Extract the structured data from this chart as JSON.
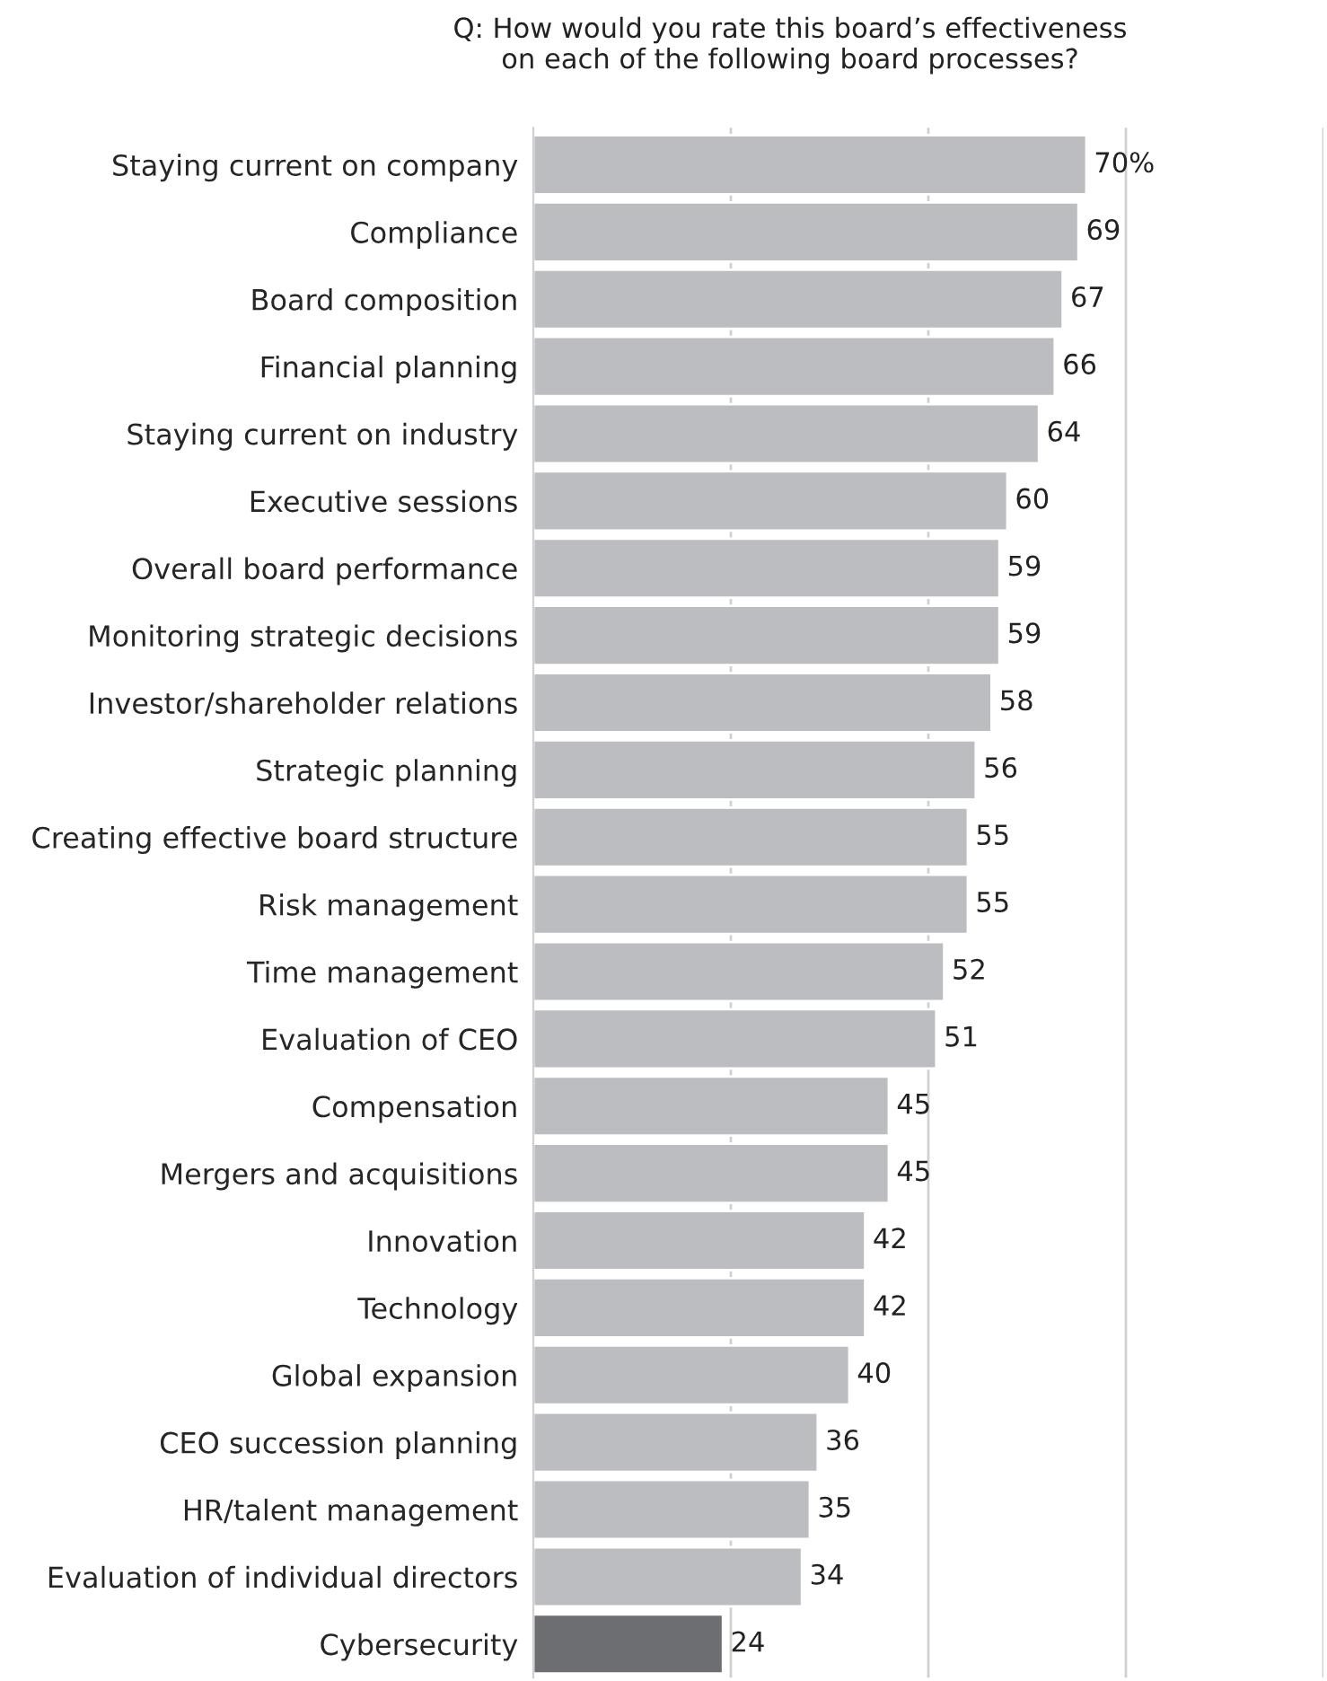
{
  "chart_data": {
    "type": "bar",
    "orientation": "horizontal",
    "title": "Q: How would you rate this board’s effectiveness\non each of the following board processes?",
    "categories": [
      "Staying current on company",
      "Compliance",
      "Board composition",
      "Financial planning",
      "Staying current on industry",
      "Executive sessions",
      "Overall board performance",
      "Monitoring strategic decisions",
      "Investor/shareholder relations",
      "Strategic planning",
      "Creating effective board structure",
      "Risk management",
      "Time management",
      "Evaluation of CEO",
      "Compensation",
      "Mergers and acquisitions",
      "Innovation",
      "Technology",
      "Global expansion",
      "CEO succession planning",
      "HR/talent management",
      "Evaluation of individual directors",
      "Cybersecurity"
    ],
    "values": [
      70,
      69,
      67,
      66,
      64,
      60,
      59,
      59,
      58,
      56,
      55,
      55,
      52,
      51,
      45,
      45,
      42,
      42,
      40,
      36,
      35,
      34,
      24
    ],
    "value_labels": [
      "70%",
      "69",
      "67",
      "66",
      "64",
      "60",
      "59",
      "59",
      "58",
      "56",
      "55",
      "55",
      "52",
      "51",
      "45",
      "45",
      "42",
      "42",
      "40",
      "36",
      "35",
      "34",
      "24"
    ],
    "colors": [
      "#bcbdc0",
      "#bcbdc0",
      "#bcbdc0",
      "#bcbdc0",
      "#bcbdc0",
      "#bcbdc0",
      "#bcbdc0",
      "#bcbdc0",
      "#bcbdc0",
      "#bcbdc0",
      "#bcbdc0",
      "#bcbdc0",
      "#bcbdc0",
      "#bcbdc0",
      "#bcbdc0",
      "#bcbdc0",
      "#bcbdc0",
      "#bcbdc0",
      "#bcbdc0",
      "#bcbdc0",
      "#bcbdc0",
      "#bcbdc0",
      "#6d6e71"
    ],
    "xlim": [
      0,
      100
    ],
    "xticks": [
      {
        "value": 25,
        "label": null
      },
      {
        "value": 50,
        "label": null
      },
      {
        "value": 75,
        "label": null
      },
      {
        "value": 100,
        "label": null
      }
    ],
    "grid": "x",
    "tick_labels": "y"
  }
}
